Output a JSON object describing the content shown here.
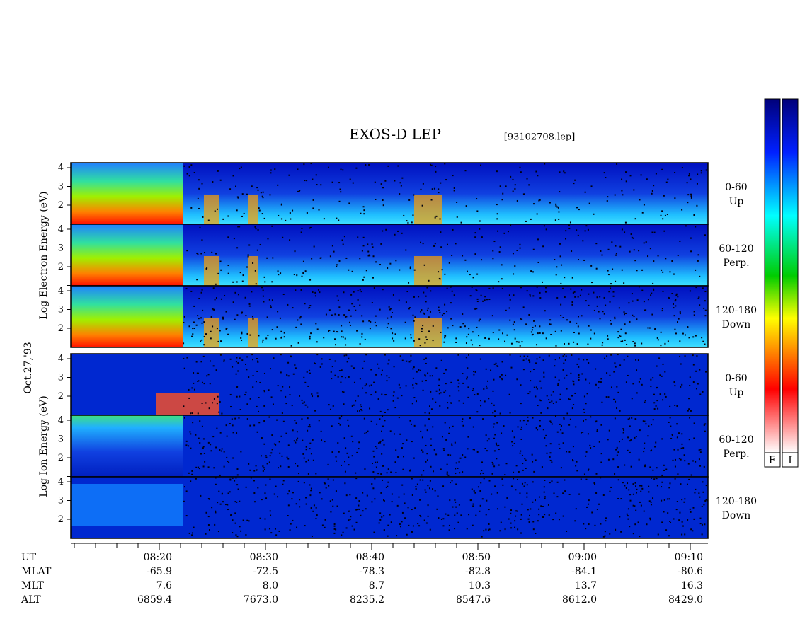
{
  "header": {
    "title": "EXOS-D LEP",
    "file": "[93102708.lep]",
    "date": "Oct.27,'93"
  },
  "electron": {
    "ylabel": "Log Electron Energy (eV)",
    "panels": [
      {
        "angle": "0-60",
        "direction": "Up"
      },
      {
        "angle": "60-120",
        "direction": "Perp."
      },
      {
        "angle": "120-180",
        "direction": "Down"
      }
    ]
  },
  "ion": {
    "ylabel": "Log Ion Energy (eV)",
    "panels": [
      {
        "angle": "0-60",
        "direction": "Up"
      },
      {
        "angle": "60-120",
        "direction": "Perp."
      },
      {
        "angle": "120-180",
        "direction": "Down"
      }
    ]
  },
  "energy_ticks": [
    "2",
    "3",
    "4"
  ],
  "orbit": {
    "row_labels": [
      "UT",
      "MLAT",
      "MLT",
      "ALT"
    ],
    "columns": [
      [
        "08:20",
        "-65.9",
        "7.6",
        "6859.4"
      ],
      [
        "08:30",
        "-72.5",
        "8.0",
        "7673.0"
      ],
      [
        "08:40",
        "-78.3",
        "8.7",
        "8235.2"
      ],
      [
        "08:50",
        "-82.8",
        "10.3",
        "8547.6"
      ],
      [
        "09:00",
        "-84.1",
        "13.7",
        "8612.0"
      ],
      [
        "09:10",
        "-80.6",
        "16.3",
        "8429.0"
      ]
    ]
  },
  "colorbars": [
    "E",
    "I"
  ]
}
